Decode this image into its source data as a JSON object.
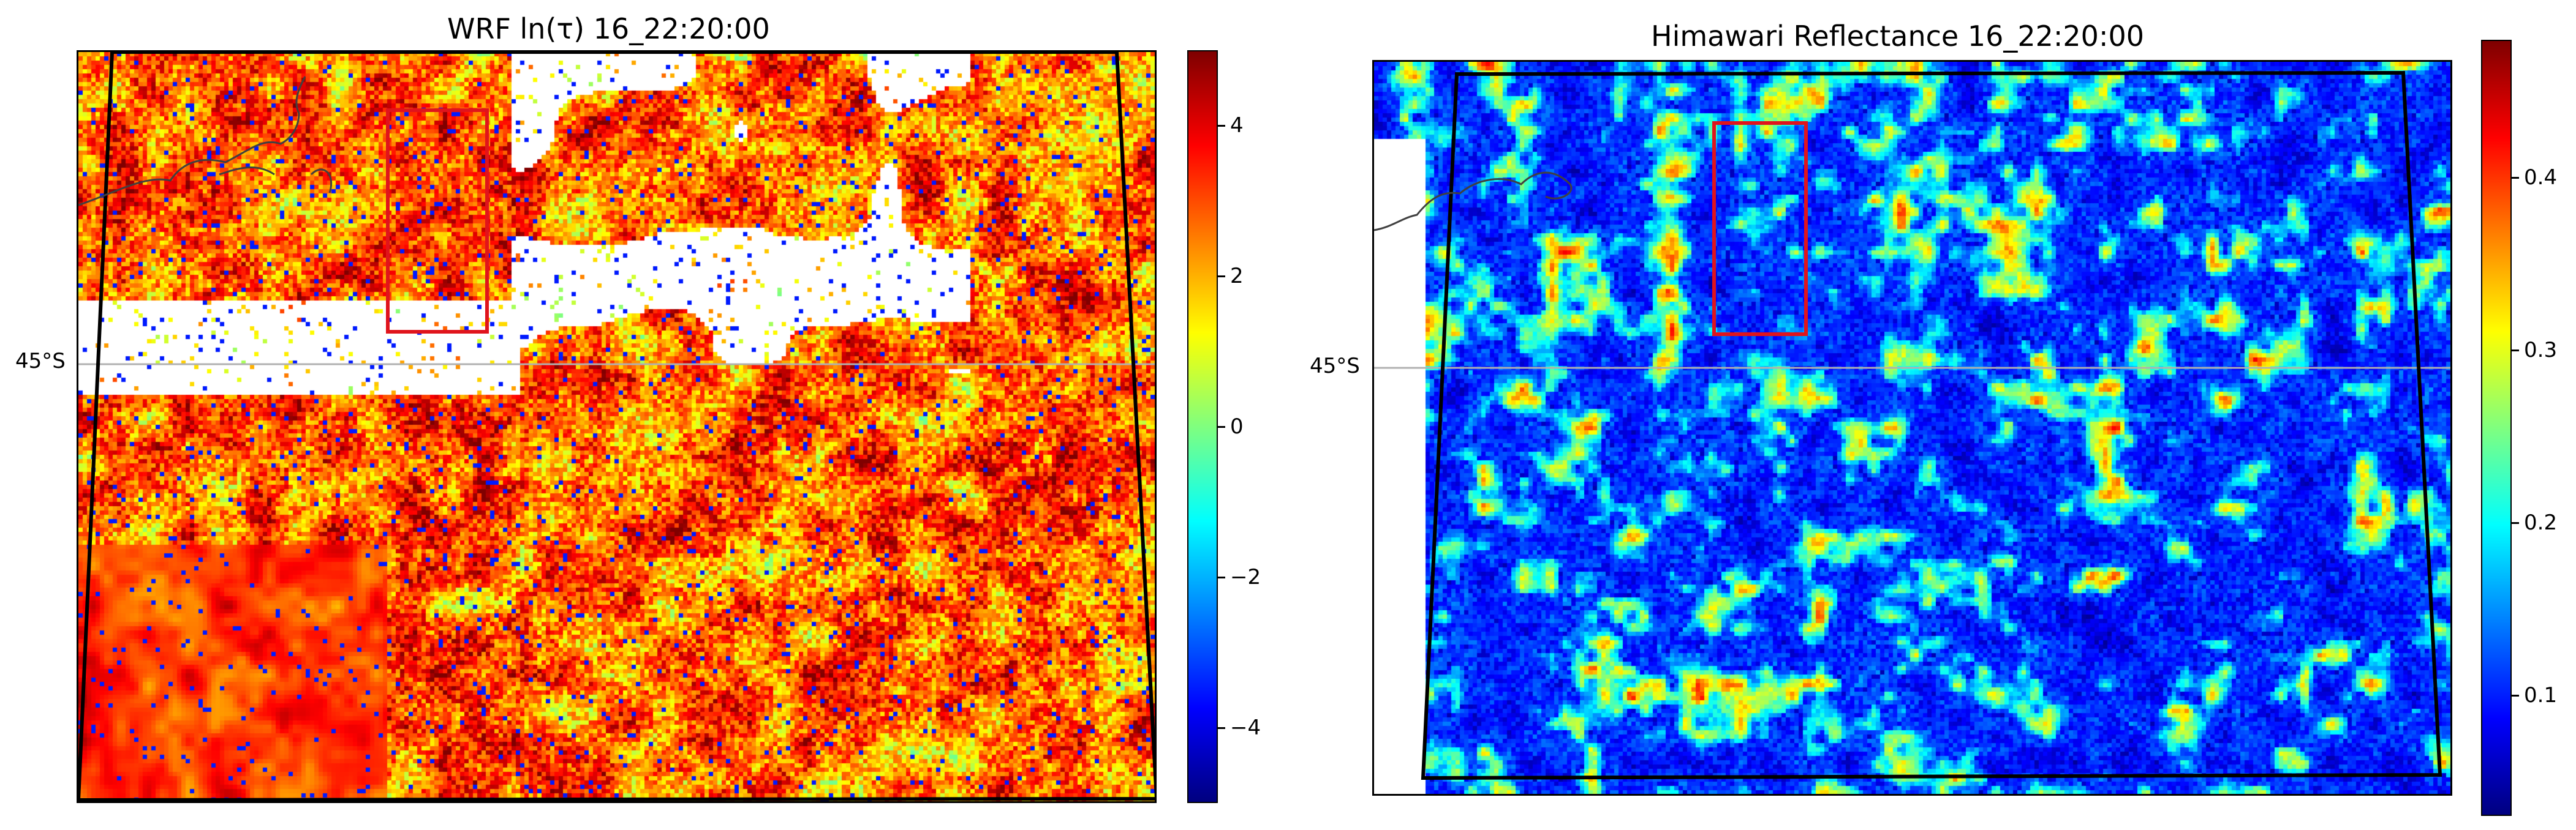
{
  "colors": {
    "red_box": "#e0141c",
    "border": "#000000",
    "latline": "#b0b0b0",
    "coast": "#404040"
  },
  "colormap": "jet",
  "panels": [
    {
      "title": "WRF ln(τ) 16_22:20:00",
      "latitude_label": "45°S",
      "colorbar": {
        "range": [
          -5,
          5
        ],
        "ticks": [
          "−4",
          "−2",
          "0",
          "2",
          "4"
        ]
      },
      "clear_sky_shown_as": "white"
    },
    {
      "title": "Himawari Reflectance 16_22:20:00",
      "latitude_label": "45°S",
      "colorbar": {
        "range": [
          0.03,
          0.48
        ],
        "ticks": [
          "0.1",
          "0.2",
          "0.3",
          "0.4"
        ]
      }
    }
  ]
}
